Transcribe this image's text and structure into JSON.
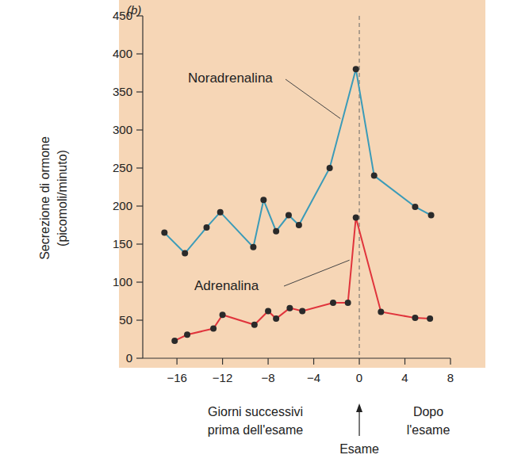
{
  "chart_data": {
    "type": "line",
    "title": "(b)",
    "ylabel": [
      "Secrezione di ormone",
      "(picomoli/minuto)"
    ],
    "xlabel": [
      "Giorni successivi",
      "prima dell'esame"
    ],
    "annotations": [
      {
        "text": [
          "Dopo",
          "l'esame"
        ]
      },
      {
        "text": [
          "Esame"
        ],
        "x": 0,
        "line_style": "dashed"
      }
    ],
    "xlim": [
      -19,
      8
    ],
    "xticks": [
      {
        "value": -16,
        "label": "−16"
      },
      {
        "value": -12,
        "label": "−12"
      },
      {
        "value": -8,
        "label": "−8"
      },
      {
        "value": -4,
        "label": "−4"
      },
      0,
      4,
      8
    ],
    "ylim": [
      0,
      450
    ],
    "yticks": [
      0,
      50,
      100,
      150,
      200,
      250,
      300,
      350,
      400,
      450
    ],
    "grid": false,
    "series": [
      {
        "name": "Noradrenalina",
        "color": "#3b9bb8",
        "marker": "circle",
        "line_style": "solid",
        "x": [
          -17.1,
          -15.3,
          -13.4,
          -12.2,
          -9.3,
          -8.4,
          -7.3,
          -6.2,
          -5.3,
          -2.6,
          -0.3,
          1.3,
          4.9,
          6.3
        ],
        "values": [
          165,
          138,
          172,
          192,
          146,
          208,
          167,
          188,
          175,
          250,
          380,
          240,
          199,
          188
        ]
      },
      {
        "name": "Adrenalina",
        "color": "#e0343c",
        "marker": "circle",
        "line_style": "solid",
        "x": [
          -16.2,
          -15.1,
          -12.8,
          -12,
          -9.2,
          -8,
          -7.3,
          -6.1,
          -5,
          -2.3,
          -1,
          -0.3,
          1.9,
          4.9,
          6.2
        ],
        "values": [
          23,
          31,
          39,
          57,
          44,
          62,
          52,
          66,
          62,
          73,
          73,
          185,
          61,
          53,
          52
        ]
      }
    ]
  }
}
